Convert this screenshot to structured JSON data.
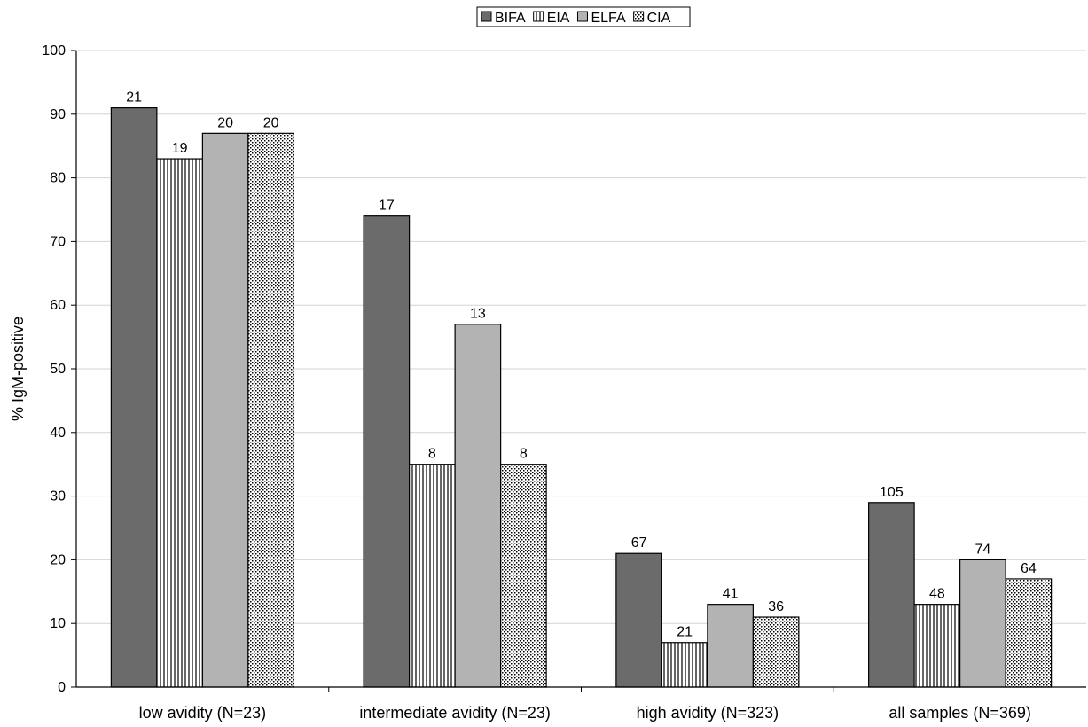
{
  "chart_data": {
    "type": "bar",
    "title": "",
    "xlabel": "",
    "ylabel": "% IgM-positive",
    "ylim": [
      0,
      100
    ],
    "yticks": [
      0,
      10,
      20,
      30,
      40,
      50,
      60,
      70,
      80,
      90,
      100
    ],
    "grid": true,
    "legend_position": "top-center",
    "categories": [
      "low avidity (N=23)",
      "intermediate avidity (N=23)",
      "high avidity (N=323)",
      "all samples (N=369)"
    ],
    "series": [
      {
        "name": "BIFA",
        "pattern": "solid",
        "color": "#6b6b6b",
        "values": [
          91,
          74,
          21,
          29
        ],
        "labels": [
          "21",
          "17",
          "67",
          "105"
        ]
      },
      {
        "name": "EIA",
        "pattern": "vertical-lines",
        "color": "#ffffff",
        "values": [
          83,
          35,
          7,
          13
        ],
        "labels": [
          "19",
          "8",
          "21",
          "48"
        ]
      },
      {
        "name": "ELFA",
        "pattern": "solid",
        "color": "#b3b3b3",
        "values": [
          87,
          57,
          13,
          20
        ],
        "labels": [
          "20",
          "13",
          "41",
          "74"
        ]
      },
      {
        "name": "CIA",
        "pattern": "dots",
        "color": "#ffffff",
        "values": [
          87,
          35,
          11,
          17
        ],
        "labels": [
          "20",
          "8",
          "36",
          "64"
        ]
      }
    ]
  }
}
